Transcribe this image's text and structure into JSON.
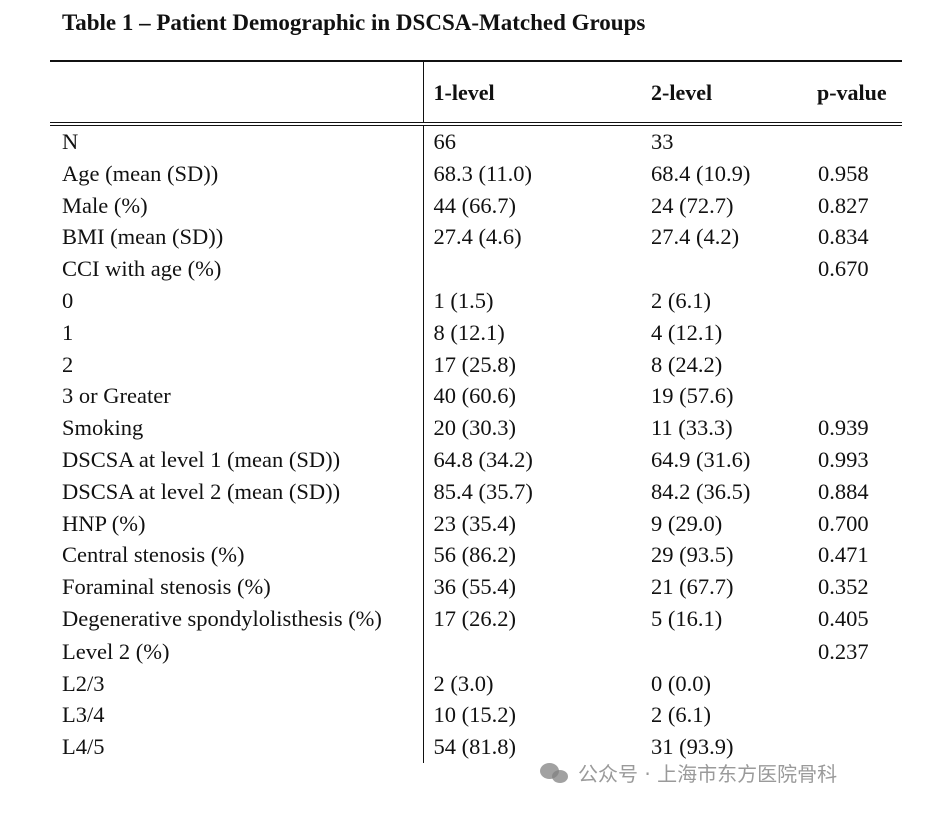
{
  "title": "Table 1 – Patient Demographic in DSCSA-Matched Groups",
  "headers": [
    "",
    "1-level",
    "2-level",
    "p-value"
  ],
  "rows": [
    [
      "N",
      "66",
      "33",
      ""
    ],
    [
      "Age (mean (SD))",
      "68.3 (11.0)",
      "68.4 (10.9)",
      "0.958"
    ],
    [
      "Male (%)",
      "44 (66.7)",
      "24 (72.7)",
      "0.827"
    ],
    [
      "BMI (mean (SD))",
      "27.4 (4.6)",
      "27.4 (4.2)",
      "0.834"
    ],
    [
      "CCI with age (%)",
      "",
      "",
      "0.670"
    ],
    [
      "0",
      "1 (1.5)",
      "2 (6.1)",
      ""
    ],
    [
      "1",
      "8 (12.1)",
      "4 (12.1)",
      ""
    ],
    [
      "2",
      "17 (25.8)",
      "8 (24.2)",
      ""
    ],
    [
      "3 or Greater",
      "40 (60.6)",
      "19 (57.6)",
      ""
    ],
    [
      "Smoking",
      "20 (30.3)",
      "11 (33.3)",
      "0.939"
    ],
    [
      "DSCSA at level 1 (mean (SD))",
      "64.8 (34.2)",
      "64.9 (31.6)",
      "0.993"
    ],
    [
      "DSCSA at level 2 (mean (SD))",
      "85.4 (35.7)",
      "84.2 (36.5)",
      "0.884"
    ],
    [
      "HNP (%)",
      "23 (35.4)",
      "9 (29.0)",
      "0.700"
    ],
    [
      "Central stenosis (%)",
      "56 (86.2)",
      "29 (93.5)",
      "0.471"
    ],
    [
      "Foraminal stenosis (%)",
      "36 (55.4)",
      "21 (67.7)",
      "0.352"
    ],
    [
      "Degenerative spondylolisthesis (%)",
      "17 (26.2)",
      "5 (16.1)",
      "0.405"
    ],
    [
      "Level 2 (%)",
      "",
      "",
      "0.237"
    ],
    [
      "L2/3",
      "2 (3.0)",
      "0 (0.0)",
      ""
    ],
    [
      "L3/4",
      "10 (15.2)",
      "2 (6.1)",
      ""
    ],
    [
      "L4/5",
      "54 (81.8)",
      "31 (93.9)",
      ""
    ]
  ],
  "watermark": {
    "icon": "wechat-icon",
    "text": "公众号 · 上海市东方医院骨科"
  }
}
